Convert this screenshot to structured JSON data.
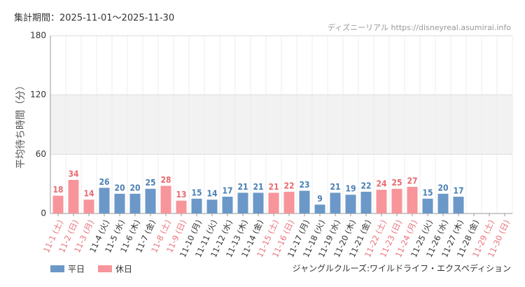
{
  "chart_data": {
    "type": "bar",
    "title": "集計期間：2025-11-01～2025-11-30",
    "source": "ディズニーリアル https://disneyreal.asumirai.info",
    "footnote": "ジャングルクルーズ:ワイルドライフ・エクスペディション",
    "y_label": "平均待ち時間（分）",
    "categories": [
      "11-1 (土)",
      "11-2 (日)",
      "11-3 (月)",
      "11-4 (火)",
      "11-5 (水)",
      "11-6 (木)",
      "11-7 (金)",
      "11-8 (土)",
      "11-9 (日)",
      "11-10 (月)",
      "11-11 (火)",
      "11-12 (水)",
      "11-13 (木)",
      "11-14 (金)",
      "11-15 (土)",
      "11-16 (日)",
      "11-17 (月)",
      "11-18 (火)",
      "11-19 (水)",
      "11-20 (木)",
      "11-21 (金)",
      "11-22 (土)",
      "11-23 (日)",
      "11-24 (月)",
      "11-25 (火)",
      "11-26 (水)",
      "11-27 (木)",
      "11-28 (金)",
      "11-29 (土)",
      "11-30 (日)"
    ],
    "category_colors": [
      "#e8737a",
      "#e8737a",
      "#e8737a",
      "#333333",
      "#333333",
      "#333333",
      "#333333",
      "#e8737a",
      "#e8737a",
      "#333333",
      "#333333",
      "#333333",
      "#333333",
      "#333333",
      "#e8737a",
      "#e8737a",
      "#333333",
      "#333333",
      "#333333",
      "#333333",
      "#333333",
      "#e8737a",
      "#e8737a",
      "#e8737a",
      "#333333",
      "#333333",
      "#333333",
      "#333333",
      "#e8737a",
      "#e8737a"
    ],
    "series": [
      {
        "name": "平日",
        "color": "#6b98c8",
        "label_color": "#4a7fb5",
        "values": [
          null,
          null,
          null,
          26,
          20,
          20,
          25,
          null,
          null,
          15,
          14,
          17,
          21,
          21,
          null,
          null,
          23,
          9,
          21,
          19,
          22,
          null,
          null,
          null,
          15,
          20,
          17,
          null,
          null,
          null
        ]
      },
      {
        "name": "休日",
        "color": "#f7959a",
        "label_color": "#e86a70",
        "values": [
          18,
          34,
          14,
          null,
          null,
          null,
          null,
          28,
          13,
          null,
          null,
          null,
          null,
          null,
          21,
          22,
          null,
          null,
          null,
          null,
          null,
          24,
          25,
          27,
          null,
          null,
          null,
          null,
          null,
          null
        ]
      }
    ],
    "ylim": [
      0,
      180
    ],
    "yticks": [
      0,
      60,
      120,
      180
    ],
    "shaded_band": [
      60,
      120
    ],
    "grid": true
  }
}
